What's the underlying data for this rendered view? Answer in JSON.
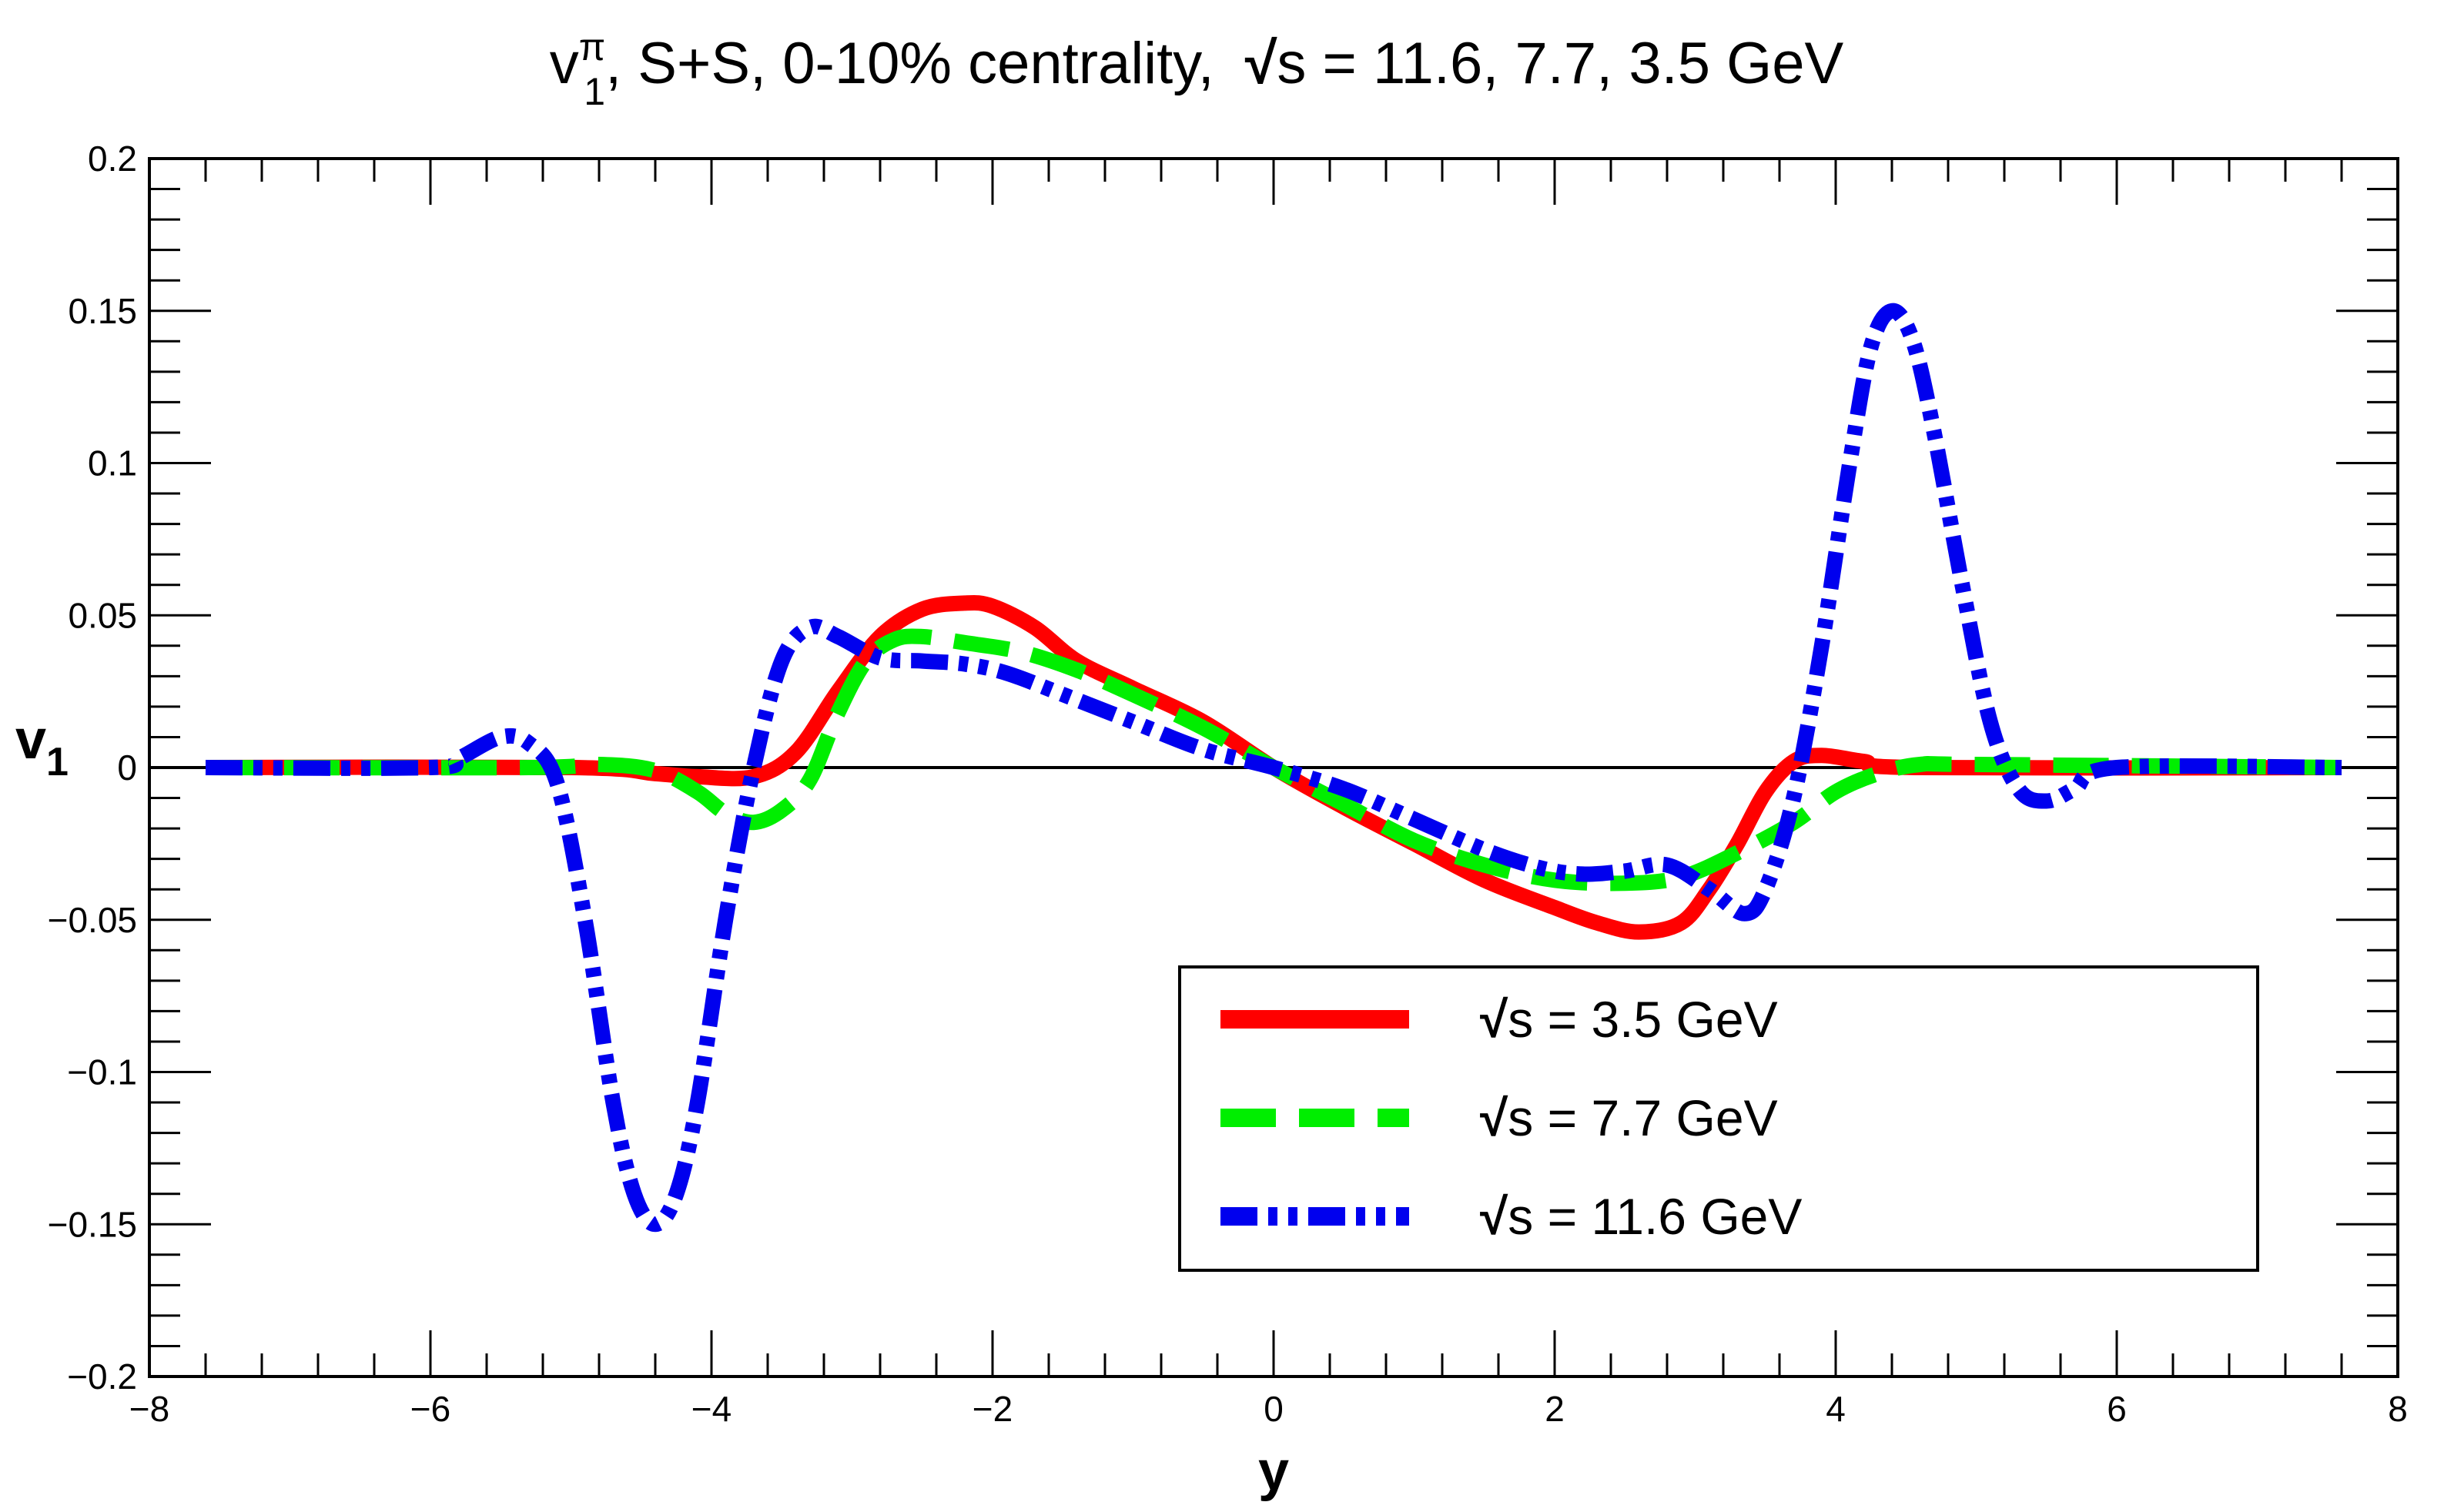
{
  "chart_data": {
    "type": "line",
    "title": {
      "prefix": "v",
      "sup": "π",
      "sub": "1",
      "middle": ", S+S, 0-10% centrality,",
      "sqrt": "√",
      "s": "s",
      "suffix": " = 11.6, 7.7, 3.5 GeV"
    },
    "xlabel": "y",
    "ylabel": {
      "main": "v",
      "sub": "1"
    },
    "xlim": [
      -8,
      8
    ],
    "ylim": [
      -0.2,
      0.2
    ],
    "xticks": [
      -8,
      -6,
      -4,
      -2,
      0,
      2,
      4,
      6,
      8
    ],
    "xtick_labels": [
      "−8",
      "−6",
      "−4",
      "−2",
      "0",
      "2",
      "4",
      "6",
      "8"
    ],
    "yticks": [
      -0.2,
      -0.15,
      -0.1,
      -0.05,
      0,
      0.05,
      0.1,
      0.15,
      0.2
    ],
    "ytick_labels": [
      "−0.2",
      "−0.15",
      "−0.1",
      "−0.05",
      "0",
      "0.05",
      "0.1",
      "0.15",
      "0.2"
    ],
    "legend_position": "bottom-right",
    "series": [
      {
        "name": "√s = 3.5 GeV",
        "legend_sqrt": "√",
        "legend_s": "s",
        "legend_rest": " = 3.5 GeV",
        "color": "#ff0000",
        "style": "solid",
        "points": [
          [
            -7.6,
            0
          ],
          [
            -5.0,
            0
          ],
          [
            -4.4,
            -0.002
          ],
          [
            -4.1,
            -0.003
          ],
          [
            -3.7,
            -0.003
          ],
          [
            -3.4,
            0.005
          ],
          [
            -3.1,
            0.025
          ],
          [
            -2.8,
            0.043
          ],
          [
            -2.5,
            0.052
          ],
          [
            -2.2,
            0.054
          ],
          [
            -2.0,
            0.053
          ],
          [
            -1.7,
            0.046
          ],
          [
            -1.4,
            0.035
          ],
          [
            -1.0,
            0.026
          ],
          [
            -0.5,
            0.015
          ],
          [
            0,
            0
          ],
          [
            0.5,
            -0.013
          ],
          [
            1.0,
            -0.025
          ],
          [
            1.5,
            -0.037
          ],
          [
            2.0,
            -0.046
          ],
          [
            2.3,
            -0.051
          ],
          [
            2.6,
            -0.054
          ],
          [
            2.9,
            -0.051
          ],
          [
            3.1,
            -0.04
          ],
          [
            3.3,
            -0.025
          ],
          [
            3.5,
            -0.008
          ],
          [
            3.7,
            0.002
          ],
          [
            3.9,
            0.004
          ],
          [
            4.2,
            0.002
          ],
          [
            4.6,
            0
          ],
          [
            7.6,
            0
          ]
        ]
      },
      {
        "name": "√s = 7.7 GeV",
        "legend_sqrt": "√",
        "legend_s": "s",
        "legend_rest": " = 7.7 GeV",
        "color": "#00ee00",
        "style": "dashed",
        "points": [
          [
            -7.6,
            0
          ],
          [
            -5.3,
            0
          ],
          [
            -4.8,
            0.001
          ],
          [
            -4.4,
            -0.001
          ],
          [
            -4.1,
            -0.008
          ],
          [
            -3.9,
            -0.015
          ],
          [
            -3.7,
            -0.018
          ],
          [
            -3.5,
            -0.014
          ],
          [
            -3.3,
            -0.004
          ],
          [
            -3.1,
            0.018
          ],
          [
            -2.9,
            0.035
          ],
          [
            -2.7,
            0.042
          ],
          [
            -2.5,
            0.043
          ],
          [
            -2.2,
            0.041
          ],
          [
            -1.8,
            0.038
          ],
          [
            -1.4,
            0.032
          ],
          [
            -1.0,
            0.024
          ],
          [
            -0.5,
            0.013
          ],
          [
            0,
            0
          ],
          [
            0.5,
            -0.012
          ],
          [
            1.0,
            -0.024
          ],
          [
            1.5,
            -0.032
          ],
          [
            2.0,
            -0.037
          ],
          [
            2.5,
            -0.038
          ],
          [
            2.9,
            -0.036
          ],
          [
            3.3,
            -0.028
          ],
          [
            3.7,
            -0.018
          ],
          [
            4.0,
            -0.008
          ],
          [
            4.3,
            -0.002
          ],
          [
            4.6,
            0.001
          ],
          [
            5.0,
            0.001
          ],
          [
            7.6,
            0
          ]
        ]
      },
      {
        "name": "√s = 11.6 GeV",
        "legend_sqrt": "√",
        "legend_s": "s",
        "legend_rest": " = 11.6 GeV",
        "color": "#0000ee",
        "style": "dash-dot-dot",
        "points": [
          [
            -7.6,
            0
          ],
          [
            -6.0,
            0
          ],
          [
            -5.8,
            0.003
          ],
          [
            -5.5,
            0.01
          ],
          [
            -5.3,
            0.008
          ],
          [
            -5.1,
            -0.005
          ],
          [
            -4.9,
            -0.05
          ],
          [
            -4.7,
            -0.11
          ],
          [
            -4.55,
            -0.14
          ],
          [
            -4.4,
            -0.15
          ],
          [
            -4.25,
            -0.14
          ],
          [
            -4.1,
            -0.11
          ],
          [
            -3.9,
            -0.05
          ],
          [
            -3.7,
            0.0
          ],
          [
            -3.5,
            0.035
          ],
          [
            -3.3,
            0.046
          ],
          [
            -3.1,
            0.043
          ],
          [
            -2.8,
            0.036
          ],
          [
            -2.5,
            0.035
          ],
          [
            -2.2,
            0.034
          ],
          [
            -1.9,
            0.031
          ],
          [
            -1.5,
            0.024
          ],
          [
            -1.0,
            0.015
          ],
          [
            -0.5,
            0.006
          ],
          [
            0,
            0
          ],
          [
            0.5,
            -0.007
          ],
          [
            1.0,
            -0.017
          ],
          [
            1.5,
            -0.027
          ],
          [
            1.9,
            -0.033
          ],
          [
            2.2,
            -0.035
          ],
          [
            2.5,
            -0.034
          ],
          [
            2.8,
            -0.032
          ],
          [
            3.1,
            -0.04
          ],
          [
            3.35,
            -0.048
          ],
          [
            3.5,
            -0.04
          ],
          [
            3.7,
            -0.01
          ],
          [
            3.9,
            0.04
          ],
          [
            4.1,
            0.1
          ],
          [
            4.25,
            0.138
          ],
          [
            4.4,
            0.15
          ],
          [
            4.55,
            0.14
          ],
          [
            4.7,
            0.11
          ],
          [
            4.9,
            0.06
          ],
          [
            5.1,
            0.015
          ],
          [
            5.3,
            -0.007
          ],
          [
            5.5,
            -0.011
          ],
          [
            5.7,
            -0.007
          ],
          [
            6.0,
            0
          ],
          [
            7.6,
            0
          ]
        ]
      }
    ]
  }
}
